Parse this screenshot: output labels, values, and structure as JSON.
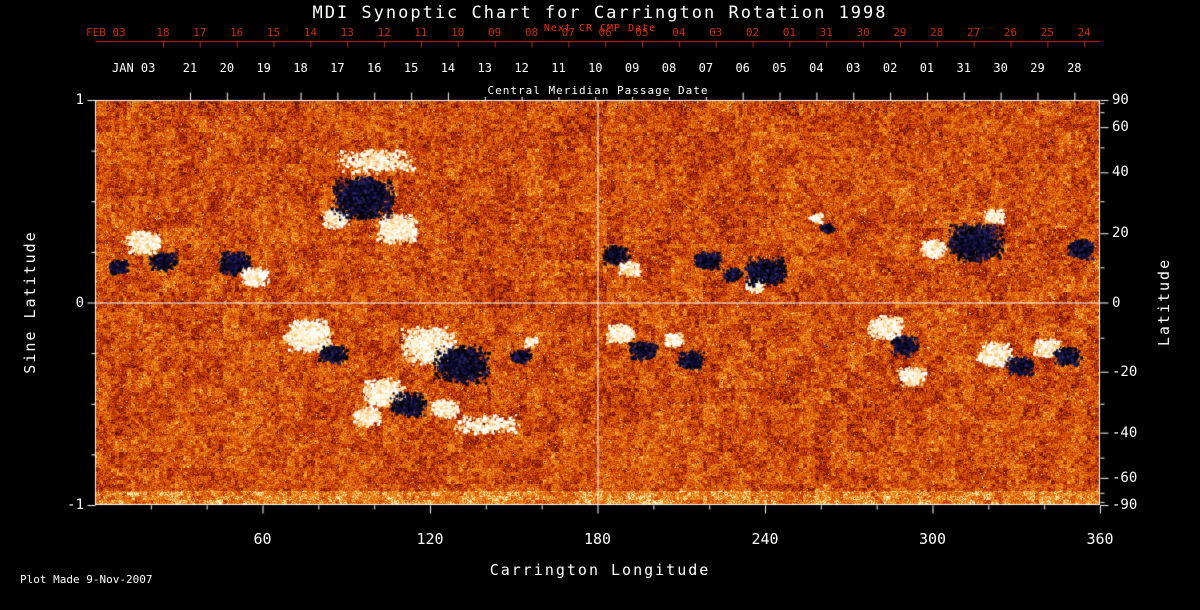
{
  "footer_note": "Plot Made  9-Nov-2007",
  "chart_data": {
    "type": "heatmap",
    "title": "MDI Synoptic Chart for Carrington Rotation 1998",
    "xlabel": "Carrington Longitude",
    "ylabel_left": "Sine Latitude",
    "ylabel_right": "Latitude",
    "xlim": [
      0,
      360
    ],
    "ylim_sine_latitude": [
      -1,
      1
    ],
    "x_tick_labels": [
      "60",
      "120",
      "180",
      "240",
      "300",
      "360"
    ],
    "x_minor_tick_step_deg": 20,
    "left_tick_labels": [
      "1",
      "0",
      "-1"
    ],
    "left_tick_values": [
      1,
      0,
      -1
    ],
    "right_tick_lats": [
      90,
      60,
      40,
      20,
      0,
      -20,
      -40,
      -60,
      -90
    ],
    "gridlines": {
      "longitude": [
        180
      ],
      "sine_latitude": [
        0
      ]
    },
    "colormap": {
      "description": "solar magnetogram: granular orange-red quiet sun, white = strong positive magnetic field, dark navy/black = strong negative field",
      "grid_color": "#ffffff",
      "axis_color": "#ffffff",
      "date_axis_color": "#cc2f00",
      "positive_extreme": "#ffffff",
      "negative_extreme": "#0c0a2e"
    },
    "top_axis_next_cr": {
      "title": "Next CR CMP Date",
      "month_label": "FEB 03",
      "day_labels": [
        "18",
        "17",
        "16",
        "15",
        "14",
        "13",
        "12",
        "11",
        "10",
        "09",
        "08",
        "07",
        "06",
        "05",
        "04",
        "03",
        "02",
        "01",
        "31",
        "30",
        "29",
        "28",
        "27",
        "26",
        "25",
        "24"
      ]
    },
    "top_axis_cmp": {
      "title": "Central Meridian Passage Date",
      "month_label": "JAN 03",
      "day_labels": [
        "21",
        "20",
        "19",
        "18",
        "17",
        "16",
        "15",
        "14",
        "13",
        "12",
        "11",
        "10",
        "09",
        "08",
        "07",
        "06",
        "05",
        "04",
        "03",
        "02",
        "01",
        "31",
        "30",
        "29",
        "28"
      ]
    },
    "active_regions": [
      {
        "lon": 8,
        "sin_lat": 0.18,
        "polarity": "negative",
        "size": 3
      },
      {
        "lon": 17,
        "sin_lat": 0.3,
        "polarity": "positive",
        "size": 5
      },
      {
        "lon": 24,
        "sin_lat": 0.21,
        "polarity": "negative",
        "size": 4
      },
      {
        "lon": 50,
        "sin_lat": 0.2,
        "polarity": "negative",
        "size": 5
      },
      {
        "lon": 57,
        "sin_lat": 0.13,
        "polarity": "positive",
        "size": 4
      },
      {
        "lon": 86,
        "sin_lat": 0.42,
        "polarity": "positive",
        "size": 4
      },
      {
        "lon": 96,
        "sin_lat": 0.52,
        "polarity": "negative",
        "size": 9
      },
      {
        "lon": 108,
        "sin_lat": 0.37,
        "polarity": "positive",
        "size": 6
      },
      {
        "lon": 100,
        "sin_lat": 0.7,
        "polarity": "positive",
        "size": 5,
        "elongated": true
      },
      {
        "lon": 76,
        "sin_lat": -0.16,
        "polarity": "positive",
        "size": 7
      },
      {
        "lon": 85,
        "sin_lat": -0.25,
        "polarity": "negative",
        "size": 4
      },
      {
        "lon": 103,
        "sin_lat": -0.44,
        "polarity": "positive",
        "size": 6
      },
      {
        "lon": 97,
        "sin_lat": -0.56,
        "polarity": "positive",
        "size": 4
      },
      {
        "lon": 119,
        "sin_lat": -0.21,
        "polarity": "positive",
        "size": 8
      },
      {
        "lon": 131,
        "sin_lat": -0.3,
        "polarity": "negative",
        "size": 8
      },
      {
        "lon": 112,
        "sin_lat": -0.5,
        "polarity": "negative",
        "size": 5
      },
      {
        "lon": 125,
        "sin_lat": -0.52,
        "polarity": "positive",
        "size": 4
      },
      {
        "lon": 140,
        "sin_lat": -0.6,
        "polarity": "positive",
        "size": 4,
        "elongated": true
      },
      {
        "lon": 152,
        "sin_lat": -0.26,
        "polarity": "negative",
        "size": 3
      },
      {
        "lon": 156,
        "sin_lat": -0.19,
        "polarity": "positive",
        "size": 2
      },
      {
        "lon": 186,
        "sin_lat": 0.24,
        "polarity": "negative",
        "size": 4
      },
      {
        "lon": 191,
        "sin_lat": 0.17,
        "polarity": "positive",
        "size": 3
      },
      {
        "lon": 188,
        "sin_lat": -0.15,
        "polarity": "positive",
        "size": 4
      },
      {
        "lon": 196,
        "sin_lat": -0.23,
        "polarity": "negative",
        "size": 4
      },
      {
        "lon": 207,
        "sin_lat": -0.18,
        "polarity": "positive",
        "size": 3
      },
      {
        "lon": 213,
        "sin_lat": -0.28,
        "polarity": "negative",
        "size": 4
      },
      {
        "lon": 219,
        "sin_lat": 0.21,
        "polarity": "negative",
        "size": 4
      },
      {
        "lon": 228,
        "sin_lat": 0.14,
        "polarity": "negative",
        "size": 3
      },
      {
        "lon": 236,
        "sin_lat": 0.09,
        "polarity": "positive",
        "size": 3
      },
      {
        "lon": 240,
        "sin_lat": 0.16,
        "polarity": "negative",
        "size": 6
      },
      {
        "lon": 258,
        "sin_lat": 0.42,
        "polarity": "positive",
        "size": 2
      },
      {
        "lon": 262,
        "sin_lat": 0.37,
        "polarity": "negative",
        "size": 2
      },
      {
        "lon": 283,
        "sin_lat": -0.12,
        "polarity": "positive",
        "size": 5
      },
      {
        "lon": 290,
        "sin_lat": -0.21,
        "polarity": "negative",
        "size": 4
      },
      {
        "lon": 292,
        "sin_lat": -0.36,
        "polarity": "positive",
        "size": 4
      },
      {
        "lon": 300,
        "sin_lat": 0.27,
        "polarity": "positive",
        "size": 4
      },
      {
        "lon": 315,
        "sin_lat": 0.3,
        "polarity": "negative",
        "size": 8
      },
      {
        "lon": 322,
        "sin_lat": 0.43,
        "polarity": "positive",
        "size": 3
      },
      {
        "lon": 322,
        "sin_lat": -0.25,
        "polarity": "positive",
        "size": 5
      },
      {
        "lon": 331,
        "sin_lat": -0.31,
        "polarity": "negative",
        "size": 4
      },
      {
        "lon": 341,
        "sin_lat": -0.22,
        "polarity": "positive",
        "size": 4
      },
      {
        "lon": 348,
        "sin_lat": -0.26,
        "polarity": "negative",
        "size": 4
      },
      {
        "lon": 353,
        "sin_lat": 0.27,
        "polarity": "negative",
        "size": 4
      }
    ]
  }
}
